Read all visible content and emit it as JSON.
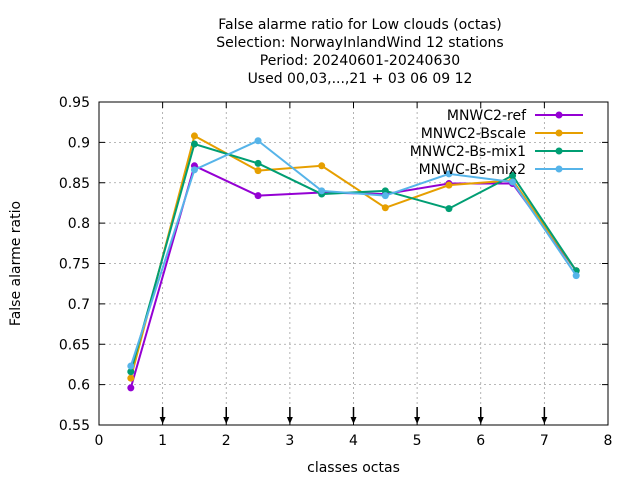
{
  "chart_data": {
    "type": "line",
    "title_lines": [
      "False alarme ratio  for Low clouds (octas)",
      "Selection: NorwayInlandWind      12 stations",
      "Period: 20240601-20240630",
      "Used 00,03,...,21 + 03 06 09 12"
    ],
    "xlabel": "classes octas",
    "ylabel": "False alarme ratio",
    "xlim": [
      0,
      8
    ],
    "ylim": [
      0.55,
      0.95
    ],
    "x_ticks": [
      "0",
      "1",
      "2",
      "3",
      "4",
      "5",
      "6",
      "7",
      "8"
    ],
    "y_ticks": [
      "0.55",
      "0.6",
      "0.65",
      "0.7",
      "0.75",
      "0.8",
      "0.85",
      "0.9",
      "0.95"
    ],
    "grid": true,
    "legend_position": "top-right",
    "x": [
      0.5,
      1.5,
      2.5,
      3.5,
      4.5,
      5.5,
      6.5,
      7.5
    ],
    "series": [
      {
        "name": "MNWC2-ref",
        "color": "#9400d3",
        "values": [
          0.596,
          0.871,
          0.834,
          0.838,
          0.836,
          0.849,
          0.849,
          0.741
        ]
      },
      {
        "name": "MNWC2-Bscale",
        "color": "#e69f00",
        "values": [
          0.608,
          0.908,
          0.865,
          0.871,
          0.819,
          0.847,
          0.853,
          0.741
        ]
      },
      {
        "name": "MNWC2-Bs-mix1",
        "color": "#009e73",
        "values": [
          0.616,
          0.898,
          0.874,
          0.836,
          0.84,
          0.818,
          0.859,
          0.741
        ]
      },
      {
        "name": "MNWC-Bs-mix2",
        "color": "#56b4e9",
        "values": [
          0.623,
          0.866,
          0.902,
          0.84,
          0.834,
          0.861,
          0.851,
          0.735
        ]
      }
    ],
    "arrow_markers_x": [
      1,
      2,
      3,
      4,
      5,
      6,
      7
    ]
  }
}
